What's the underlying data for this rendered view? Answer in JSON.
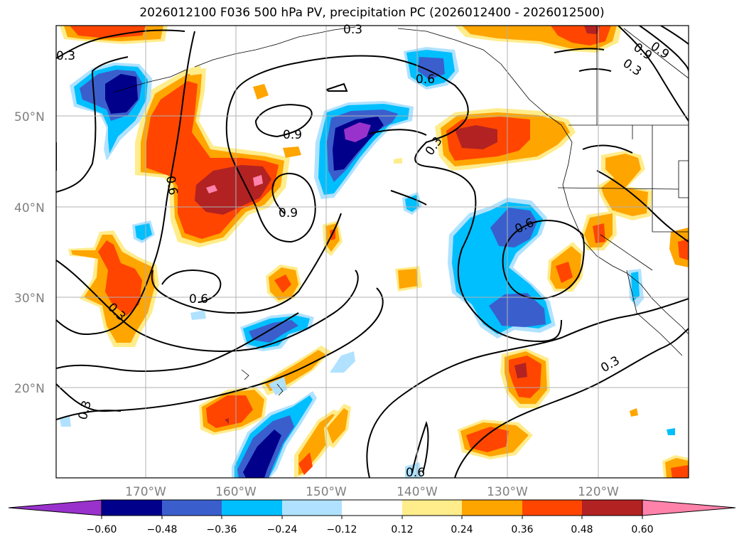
{
  "title": "2026012100 F036 500 hPa PV, precipitation PC (2026012400 - 2026012500)",
  "latitude_labels": [
    "50°N",
    "40°N",
    "30°N",
    "20°N"
  ],
  "longitude_labels": [
    "170°W",
    "160°W",
    "150°W",
    "140°W",
    "130°W",
    "120°W"
  ],
  "contour_labels": [
    "0.3",
    "0.6",
    "0.9",
    "0.9",
    "0.6",
    "0.3",
    "0.6",
    "0.9",
    "0.9",
    "0.3",
    "0.3",
    "0.3",
    "0.6",
    "0.3",
    "0.6",
    "0.3"
  ],
  "colorbar": {
    "tick_labels": [
      "−0.60",
      "−0.48",
      "−0.36",
      "−0.24",
      "−0.12",
      "0.12",
      "0.24",
      "0.36",
      "0.48",
      "0.60"
    ],
    "colors": [
      "#9932cc",
      "#00008b",
      "#3a5fcd",
      "#00bfff",
      "#b0e2ff",
      "#ffffff",
      "#ffec8b",
      "#ffa500",
      "#ff4500",
      "#b22222",
      "#ff82ab"
    ]
  },
  "colors": {
    "purple": "#9932cc",
    "navy": "#00008b",
    "royal": "#3a5fcd",
    "sky": "#00bfff",
    "lightblue": "#b0e2ff",
    "yellow": "#ffec8b",
    "orange": "#ffa500",
    "redorange": "#ff4500",
    "firebrick": "#b22222",
    "pink": "#ff82ab"
  }
}
